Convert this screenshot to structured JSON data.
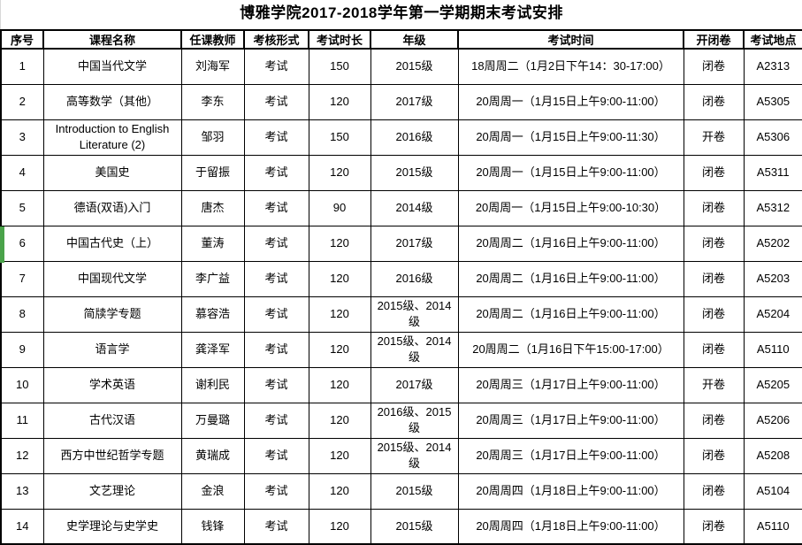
{
  "title": "博雅学院2017-2018学年第一学期期末考试安排",
  "columns": [
    {
      "key": "no",
      "label": "序号"
    },
    {
      "key": "course",
      "label": "课程名称"
    },
    {
      "key": "teacher",
      "label": "任课教师"
    },
    {
      "key": "form",
      "label": "考核形式"
    },
    {
      "key": "duration",
      "label": "考试时长"
    },
    {
      "key": "grade",
      "label": "年级"
    },
    {
      "key": "time",
      "label": "考试时间"
    },
    {
      "key": "open_closed",
      "label": "开闭卷"
    },
    {
      "key": "location",
      "label": "考试地点"
    }
  ],
  "rows": [
    {
      "no": "1",
      "course": "中国当代文学",
      "teacher": "刘海军",
      "form": "考试",
      "duration": "150",
      "grade": "2015级",
      "time": "18周周二（1月2日下午14：30-17:00）",
      "open_closed": "闭卷",
      "location": "A2313"
    },
    {
      "no": "2",
      "course": "高等数学（其他）",
      "teacher": "李东",
      "form": "考试",
      "duration": "120",
      "grade": "2017级",
      "time": "20周周一（1月15日上午9:00-11:00）",
      "open_closed": "闭卷",
      "location": "A5305"
    },
    {
      "no": "3",
      "course": "Introduction to English Literature (2)",
      "teacher": "邹羽",
      "form": "考试",
      "duration": "150",
      "grade": "2016级",
      "time": "20周周一（1月15日上午9:00-11:30）",
      "open_closed": "开卷",
      "location": "A5306"
    },
    {
      "no": "4",
      "course": "美国史",
      "teacher": "于留振",
      "form": "考试",
      "duration": "120",
      "grade": "2015级",
      "time": "20周周一（1月15日上午9:00-11:00）",
      "open_closed": "闭卷",
      "location": "A5311"
    },
    {
      "no": "5",
      "course": "德语(双语)入门",
      "teacher": "唐杰",
      "form": "考试",
      "duration": "90",
      "grade": "2014级",
      "time": "20周周一（1月15日上午9:00-10:30）",
      "open_closed": "闭卷",
      "location": "A5312"
    },
    {
      "no": "6",
      "course": "中国古代史（上）",
      "teacher": "董涛",
      "form": "考试",
      "duration": "120",
      "grade": "2017级",
      "time": "20周周二（1月16日上午9:00-11:00）",
      "open_closed": "闭卷",
      "location": "A5202"
    },
    {
      "no": "7",
      "course": "中国现代文学",
      "teacher": "李广益",
      "form": "考试",
      "duration": "120",
      "grade": "2016级",
      "time": "20周周二（1月16日上午9:00-11:00）",
      "open_closed": "闭卷",
      "location": "A5203"
    },
    {
      "no": "8",
      "course": "简牍学专题",
      "teacher": "慕容浩",
      "form": "考试",
      "duration": "120",
      "grade": "2015级、2014级",
      "time": "20周周二（1月16日上午9:00-11:00）",
      "open_closed": "闭卷",
      "location": "A5204"
    },
    {
      "no": "9",
      "course": "语言学",
      "teacher": "龚泽军",
      "form": "考试",
      "duration": "120",
      "grade": "2015级、2014级",
      "time": "20周周二（1月16日下午15:00-17:00）",
      "open_closed": "闭卷",
      "location": "A5110"
    },
    {
      "no": "10",
      "course": "学术英语",
      "teacher": "谢利民",
      "form": "考试",
      "duration": "120",
      "grade": "2017级",
      "time": "20周周三（1月17日上午9:00-11:00）",
      "open_closed": "开卷",
      "location": "A5205"
    },
    {
      "no": "11",
      "course": "古代汉语",
      "teacher": "万曼璐",
      "form": "考试",
      "duration": "120",
      "grade": "2016级、2015级",
      "time": "20周周三（1月17日上午9:00-11:00）",
      "open_closed": "闭卷",
      "location": "A5206"
    },
    {
      "no": "12",
      "course": "西方中世纪哲学专题",
      "teacher": "黄瑞成",
      "form": "考试",
      "duration": "120",
      "grade": "2015级、2014级",
      "time": "20周周三（1月17日上午9:00-11:00）",
      "open_closed": "闭卷",
      "location": "A5208"
    },
    {
      "no": "13",
      "course": "文艺理论",
      "teacher": "金浪",
      "form": "考试",
      "duration": "120",
      "grade": "2015级",
      "time": "20周周四（1月18日上午9:00-11:00）",
      "open_closed": "闭卷",
      "location": "A5104"
    },
    {
      "no": "14",
      "course": "史学理论与史学史",
      "teacher": "钱锋",
      "form": "考试",
      "duration": "120",
      "grade": "2015级",
      "time": "20周周四（1月18日上午9:00-11:00）",
      "open_closed": "闭卷",
      "location": "A5110"
    }
  ],
  "selection": {
    "selected_row_no": "6",
    "bar_color": "#4aa34a"
  },
  "colors": {
    "border": "#000000",
    "text": "#000000",
    "background": "#ffffff"
  }
}
